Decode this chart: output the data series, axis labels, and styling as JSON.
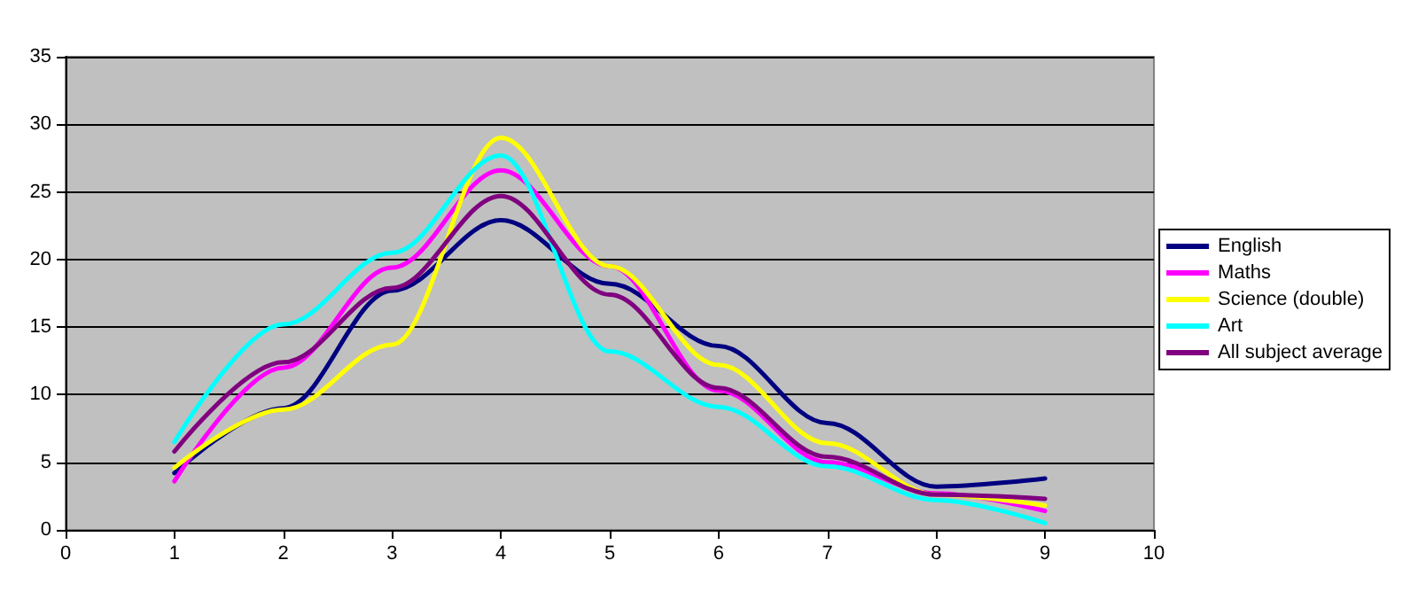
{
  "chart_data": {
    "type": "line",
    "x": [
      1,
      2,
      3,
      4,
      5,
      6,
      7,
      8,
      9
    ],
    "xlim": [
      0,
      10
    ],
    "xticks": [
      0,
      1,
      2,
      3,
      4,
      5,
      6,
      7,
      8,
      9,
      10
    ],
    "ylim": [
      0,
      35
    ],
    "yticks": [
      0,
      5,
      10,
      15,
      20,
      25,
      30,
      35
    ],
    "grid": "y",
    "legend": "right",
    "marker": "none",
    "line_style": "solid",
    "series": [
      {
        "name": "English",
        "color": "#000080",
        "values": [
          4.2,
          9,
          17.7,
          22.9,
          18.2,
          13.6,
          7.9,
          3.2,
          3.8
        ]
      },
      {
        "name": "Maths",
        "color": "#ff00ff",
        "values": [
          3.6,
          12,
          19.4,
          26.6,
          19.5,
          10.3,
          5,
          2.7,
          1.4
        ]
      },
      {
        "name": "Science (double)",
        "color": "#ffff00",
        "values": [
          4.6,
          8.9,
          13.7,
          29,
          19.5,
          12.2,
          6.4,
          2.6,
          1.8
        ]
      },
      {
        "name": "Art",
        "color": "#00ffff",
        "values": [
          6.5,
          15.2,
          20.5,
          27.7,
          13.2,
          9.1,
          4.7,
          2.2,
          0.5
        ]
      },
      {
        "name": "All subject average",
        "color": "#800080",
        "values": [
          5.8,
          12.4,
          17.9,
          24.7,
          17.4,
          10.5,
          5.4,
          2.6,
          2.3
        ]
      }
    ]
  }
}
